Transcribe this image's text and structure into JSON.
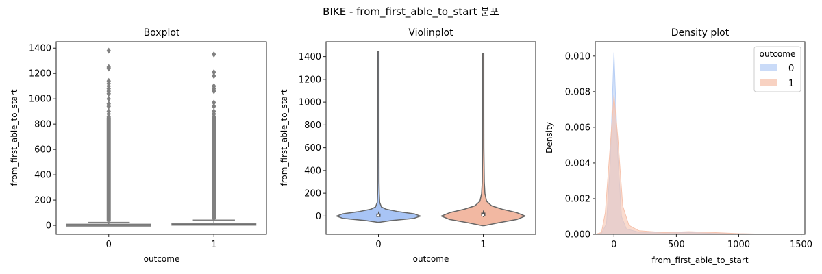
{
  "suptitle": "BIKE - from_first_able_to_start 분포",
  "chart_data": [
    {
      "type": "box",
      "title": "Boxplot",
      "xlabel": "outcome",
      "ylabel": "from_first_able_to_start",
      "categories": [
        "0",
        "1"
      ],
      "ylim": [
        -70,
        1450
      ],
      "yticks": [
        0,
        200,
        400,
        600,
        800,
        1000,
        1200,
        1400
      ],
      "color": "#808080",
      "boxes": [
        {
          "category": "0",
          "q1": 1,
          "median": 4,
          "q3": 10,
          "whisker_low": 0,
          "whisker_high": 24,
          "outliers_top": [
            1380,
            1250,
            1240,
            1140,
            1120,
            1100,
            1080,
            1060,
            1040,
            1000,
            960,
            940,
            900,
            880,
            860
          ]
        },
        {
          "category": "1",
          "q1": 1,
          "median": 6,
          "q3": 18,
          "whisker_low": 0,
          "whisker_high": 42,
          "outliers_top": [
            1350,
            1210,
            1180,
            1100,
            1080,
            1060,
            970,
            940,
            900,
            880,
            860
          ]
        }
      ]
    },
    {
      "type": "violin",
      "title": "Violinplot",
      "xlabel": "outcome",
      "ylabel": "from_first_able_to_start",
      "categories": [
        "0",
        "1"
      ],
      "ylim": [
        -160,
        1530
      ],
      "yticks": [
        0,
        200,
        400,
        600,
        800,
        1000,
        1200,
        1400
      ],
      "series": [
        {
          "category": "0",
          "color": "#a8c4f5",
          "min": -55,
          "max": 1445,
          "median": 4,
          "q1": 1,
          "q3": 10,
          "density_profile": [
            [
              -55,
              0.02
            ],
            [
              -40,
              0.3
            ],
            [
              -20,
              0.85
            ],
            [
              0,
              1.0
            ],
            [
              20,
              0.85
            ],
            [
              40,
              0.45
            ],
            [
              60,
              0.18
            ],
            [
              80,
              0.07
            ],
            [
              120,
              0.03
            ],
            [
              200,
              0.02
            ],
            [
              300,
              0.015
            ],
            [
              600,
              0.012
            ],
            [
              900,
              0.01
            ],
            [
              1445,
              0.003
            ]
          ]
        },
        {
          "category": "1",
          "color": "#f2b8a2",
          "min": -85,
          "max": 1425,
          "median": 6,
          "q1": 1,
          "q3": 18,
          "density_profile": [
            [
              -85,
              0.02
            ],
            [
              -60,
              0.35
            ],
            [
              -30,
              0.8
            ],
            [
              0,
              1.0
            ],
            [
              30,
              0.8
            ],
            [
              60,
              0.45
            ],
            [
              90,
              0.2
            ],
            [
              130,
              0.08
            ],
            [
              200,
              0.04
            ],
            [
              300,
              0.025
            ],
            [
              600,
              0.015
            ],
            [
              900,
              0.01
            ],
            [
              1425,
              0.003
            ]
          ]
        }
      ]
    },
    {
      "type": "area",
      "title": "Density plot",
      "xlabel": "from_first_able_to_start",
      "ylabel": "Density",
      "xlim": [
        -150,
        1530
      ],
      "ylim": [
        0,
        0.0108
      ],
      "xticks": [
        0,
        500,
        1000,
        1500
      ],
      "yticks": [
        0.0,
        0.002,
        0.004,
        0.006,
        0.008,
        0.01
      ],
      "ytick_labels": [
        "0.000",
        "0.002",
        "0.004",
        "0.006",
        "0.008",
        "0.010"
      ],
      "legend": {
        "title": "outcome",
        "position": "top-right"
      },
      "series": [
        {
          "name": "0",
          "color": "#b8cff5",
          "points": [
            [
              -150,
              0
            ],
            [
              -100,
              5e-05
            ],
            [
              -60,
              0.0006
            ],
            [
              -30,
              0.004
            ],
            [
              0,
              0.0102
            ],
            [
              30,
              0.0045
            ],
            [
              60,
              0.001
            ],
            [
              100,
              0.0003
            ],
            [
              200,
              0.00012
            ],
            [
              300,
              0.00012
            ],
            [
              400,
              8e-05
            ],
            [
              600,
              0.0001
            ],
            [
              800,
              5e-05
            ],
            [
              1000,
              3e-05
            ],
            [
              1200,
              1e-05
            ],
            [
              1500,
              0
            ]
          ]
        },
        {
          "name": "1",
          "color": "#f6c3ae",
          "points": [
            [
              -150,
              0
            ],
            [
              -100,
              0.0001
            ],
            [
              -70,
              0.0012
            ],
            [
              -30,
              0.005
            ],
            [
              0,
              0.0078
            ],
            [
              30,
              0.0055
            ],
            [
              70,
              0.0016
            ],
            [
              120,
              0.0005
            ],
            [
              200,
              0.0002
            ],
            [
              300,
              0.00015
            ],
            [
              400,
              0.0001
            ],
            [
              600,
              0.00015
            ],
            [
              800,
              0.0001
            ],
            [
              1000,
              4e-05
            ],
            [
              1200,
              1e-05
            ],
            [
              1500,
              0
            ]
          ]
        }
      ]
    }
  ]
}
